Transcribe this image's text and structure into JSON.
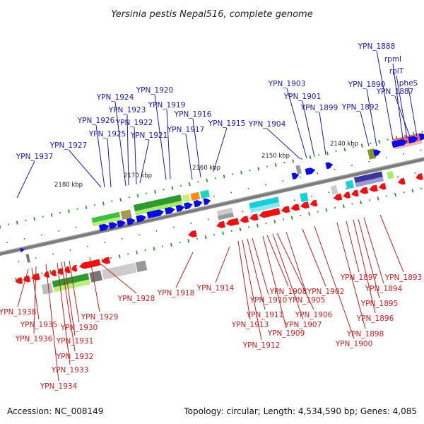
{
  "title": "Yersinia pestis Nepal516, complete genome",
  "footer": {
    "accession": "Accession: NC_008149",
    "summary": "Topology: circular; Length: 4,534,590 bp; Genes: 4,085"
  },
  "scale_labels": [
    "2180 kbp",
    "2170 kbp",
    "2160 kbp",
    "2150 kbp",
    "2140 kbp"
  ],
  "genes_top": [
    "YPN_1937",
    "YPN_1927",
    "YPN_1926",
    "YPN_1925",
    "YPN_1924",
    "YPN_1923",
    "YPN_1922",
    "YPN_1921",
    "YPN_1920",
    "YPN_1919",
    "YPN_1917",
    "YPN_1916",
    "YPN_1915",
    "YPN_1904",
    "YPN_1903",
    "YPN_1901",
    "YPN_1899",
    "YPN_1892",
    "YPN_1890",
    "YPN_1888",
    "rpmI",
    "rplT",
    "YPN_1887",
    "pheS"
  ],
  "genes_bottom": [
    "YPN_1938",
    "YPN_1935",
    "YPN_1936",
    "YPN_1934",
    "YPN_1933",
    "YPN_1932",
    "YPN_1931",
    "YPN_1930",
    "YPN_1929",
    "YPN_1928",
    "YPN_1918",
    "YPN_1914",
    "YPN_1913",
    "YPN_1912",
    "YPN_1911",
    "YPN_1910",
    "YPN_1909",
    "YPN_1908",
    "YPN_1907",
    "YPN_1906",
    "YPN_1905",
    "YPN_1902",
    "YPN_1900",
    "YPN_1898",
    "YPN_1897",
    "YPN_1896",
    "YPN_1895",
    "YPN_1894",
    "YPN_1893"
  ],
  "colors": {
    "forward_label": "#1a1ab0",
    "reverse_label": "#c81e1e",
    "forward_arrow": "#0a0ae6",
    "reverse_arrow": "#ee1111",
    "backbone": "#777777"
  }
}
